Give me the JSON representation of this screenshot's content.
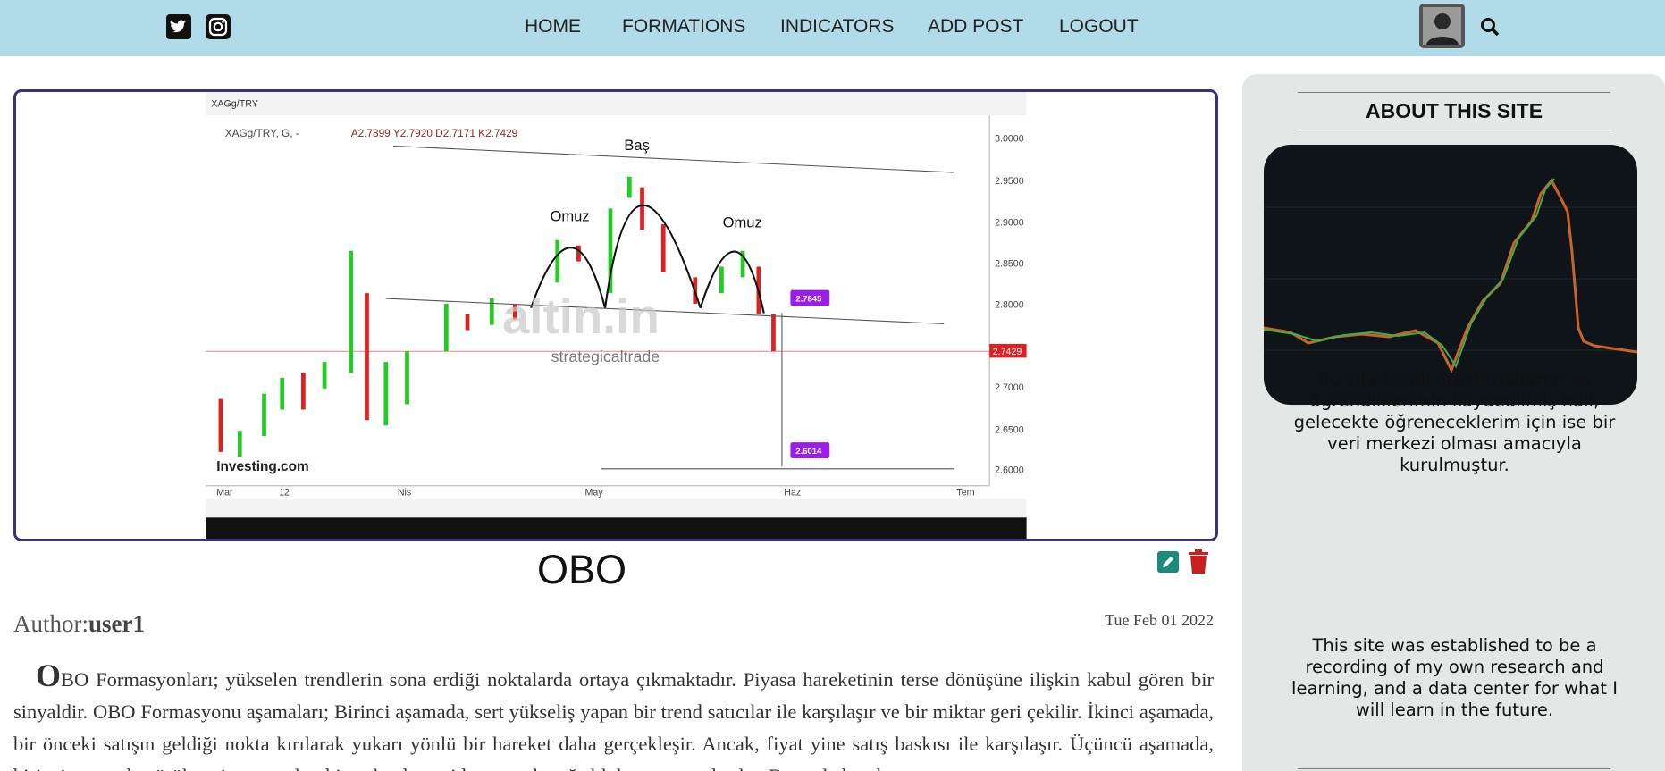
{
  "nav": {
    "links": [
      "HOME",
      "FORMATIONS",
      "INDICATORS",
      "ADD POST",
      "LOGOUT"
    ]
  },
  "post": {
    "image": {
      "symbol": "XAGg/TRY",
      "legend": "XAGg/TRY, G, -",
      "ohlc": "A2.7899 Y2.7920 D2.7171 K2.7429",
      "head": "Baş",
      "shoulders": [
        "Omuz",
        "Omuz"
      ],
      "watermark": "strategicaltrade",
      "brand": "Investing.com",
      "price_axis": [
        "3.0000",
        "2.9500",
        "2.9000",
        "2.8500",
        "2.8000",
        "2.7000",
        "2.6500",
        "2.6000"
      ],
      "time_axis": [
        "Mar",
        "12",
        "Nis",
        "May",
        "Haz",
        "Tem"
      ],
      "markers": [
        "2.7845",
        "2.6014",
        "2.7429"
      ]
    },
    "title": "OBO",
    "author_label": "Author:",
    "author": "user1",
    "date": "Tue Feb 01 2022",
    "body": "OBO Formasyonları; yükselen trendlerin sona erdiği noktalarda ortaya çıkmaktadır. Piyasa hareketinin terse dönüşüne ilişkin kabul gören bir sinyaldir. OBO Formasyonu aşamaları; Birinci aşamada, sert yükseliş yapan bir trend satıcılar ile karşılaşır ve bir miktar geri çekilir. İkinci aşamada, bir önceki satışın geldiği nokta kırılarak yukarı yönlü bir hareket daha gerçekleşir. Ancak, fiyat yine satış baskısı ile karşılaşır. Üçüncü aşamada, birinci aşamada görülen zirveye yakın bir noktada yeniden satıcılar ağırlık kazanmaya başlar. Bununla beraber,"
  },
  "sidebar": {
    "title": "ABOUT THIS SITE",
    "text_tr": "Bu site kendi araştırmalarım ve öğrendiklerimin kaydedilmiş hali, gelecekte öğreneceklerim için ise bir veri merkezi olması amacıyla kurulmuştur.",
    "text_en": "This site was established to be a recording of my own research and learning, and a data center for what I will learn in the future."
  }
}
